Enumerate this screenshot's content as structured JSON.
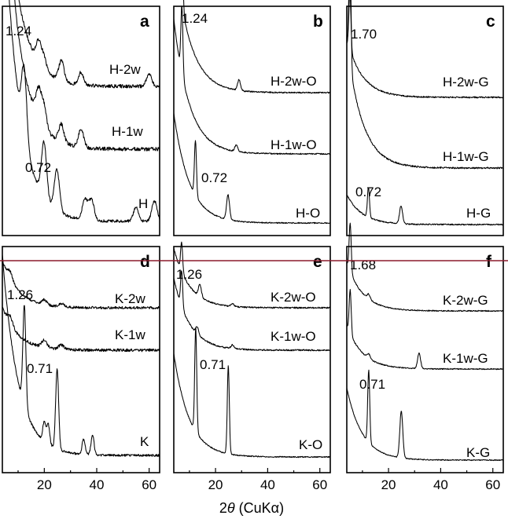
{
  "xlabel": {
    "prefix": "2",
    "theta": "θ",
    "unit": " (CuKα)"
  },
  "colors": {
    "trace": "#000000",
    "divider": "#8b1a2b",
    "background": "#ffffff"
  },
  "chart_data": [
    {
      "type": "line",
      "panel": "a",
      "xlim": [
        4,
        64
      ],
      "xticks": [],
      "series": [
        {
          "name": "H-2w",
          "peaks": [
            [
              7.1,
              1.0
            ],
            [
              17.8,
              0.5
            ],
            [
              19.8,
              0.3
            ],
            [
              26.5,
              0.5
            ],
            [
              34.0,
              0.3
            ],
            [
              60.0,
              0.3
            ]
          ]
        },
        {
          "name": "H-1w",
          "peaks": [
            [
              7.1,
              0.6
            ],
            [
              17.8,
              0.8
            ],
            [
              19.8,
              0.6
            ],
            [
              26.5,
              0.5
            ],
            [
              34.0,
              0.5
            ]
          ]
        },
        {
          "name": "H",
          "peaks": [
            [
              12.3,
              1.0
            ],
            [
              19.9,
              0.8
            ],
            [
              24.8,
              0.6
            ],
            [
              35.5,
              0.3
            ],
            [
              38.0,
              0.3
            ],
            [
              55.0,
              0.2
            ],
            [
              62.0,
              0.3
            ]
          ]
        }
      ],
      "annotations": [
        {
          "text": "1.24",
          "x": 7.1
        },
        {
          "text": "0.72",
          "x": 12.3
        }
      ]
    },
    {
      "type": "line",
      "panel": "b",
      "xlim": [
        4,
        64
      ],
      "xticks": [],
      "series": [
        {
          "name": "H-2w-O",
          "peaks": [
            [
              7.1,
              1.0
            ],
            [
              29.0,
              0.15
            ]
          ]
        },
        {
          "name": "H-1w-O",
          "peaks": [
            [
              7.1,
              1.0
            ],
            [
              28.0,
              0.1
            ]
          ]
        },
        {
          "name": "H-O",
          "peaks": [
            [
              12.3,
              1.0
            ],
            [
              24.8,
              0.45
            ]
          ]
        }
      ],
      "annotations": [
        {
          "text": "1.24",
          "x": 7.1
        },
        {
          "text": "0.72",
          "x": 12.3
        }
      ]
    },
    {
      "type": "line",
      "panel": "c",
      "xlim": [
        4,
        64
      ],
      "xticks": [],
      "series": [
        {
          "name": "H-2w-G",
          "peaks": [
            [
              5.2,
              1.0
            ]
          ]
        },
        {
          "name": "H-1w-G",
          "peaks": [
            [
              5.2,
              1.0
            ]
          ]
        },
        {
          "name": "H-G",
          "peaks": [
            [
              12.3,
              1.0
            ],
            [
              24.8,
              0.6
            ]
          ]
        }
      ],
      "annotations": [
        {
          "text": "1.70",
          "x": 5.2
        },
        {
          "text": "0.72",
          "x": 12.3
        }
      ]
    },
    {
      "type": "line",
      "panel": "d",
      "xlim": [
        4,
        64
      ],
      "xticks": [
        20,
        40,
        60
      ],
      "series": [
        {
          "name": "K-2w",
          "peaks": [
            [
              7.0,
              0.5
            ],
            [
              20.0,
              0.3
            ],
            [
              26.5,
              0.2
            ]
          ]
        },
        {
          "name": "K-1w",
          "peaks": [
            [
              7.0,
              0.6
            ],
            [
              20.0,
              0.5
            ],
            [
              26.5,
              0.3
            ]
          ]
        },
        {
          "name": "K",
          "peaks": [
            [
              12.4,
              1.0
            ],
            [
              20.0,
              0.2
            ],
            [
              21.5,
              0.2
            ],
            [
              24.9,
              0.8
            ],
            [
              35.0,
              0.15
            ],
            [
              38.4,
              0.2
            ]
          ]
        }
      ],
      "annotations": [
        {
          "text": "1.26",
          "x": 7.0
        },
        {
          "text": "0.71",
          "x": 12.4
        }
      ]
    },
    {
      "type": "line",
      "panel": "e",
      "xlim": [
        4,
        64
      ],
      "xticks": [
        20,
        40,
        60
      ],
      "series": [
        {
          "name": "K-2w-O",
          "peaks": [
            [
              7.0,
              1.0
            ],
            [
              14.0,
              0.4
            ],
            [
              26.5,
              0.1
            ]
          ]
        },
        {
          "name": "K-1w-O",
          "peaks": [
            [
              7.0,
              1.0
            ],
            [
              13.0,
              0.2
            ],
            [
              26.5,
              0.1
            ]
          ]
        },
        {
          "name": "K-O",
          "peaks": [
            [
              12.4,
              1.0
            ],
            [
              24.9,
              0.85
            ]
          ]
        }
      ],
      "annotations": [
        {
          "text": "1.26",
          "x": 7.0
        },
        {
          "text": "0.71",
          "x": 12.4
        }
      ]
    },
    {
      "type": "line",
      "panel": "f",
      "xlim": [
        4,
        64
      ],
      "xticks": [
        20,
        40,
        60
      ],
      "series": [
        {
          "name": "K-2w-G",
          "peaks": [
            [
              5.3,
              1.0
            ],
            [
              12.4,
              0.1
            ]
          ]
        },
        {
          "name": "K-1w-G",
          "peaks": [
            [
              5.3,
              1.0
            ],
            [
              12.4,
              0.1
            ],
            [
              31.7,
              0.35
            ]
          ]
        },
        {
          "name": "K-G",
          "peaks": [
            [
              12.4,
              1.0
            ],
            [
              24.9,
              0.65
            ]
          ]
        }
      ],
      "annotations": [
        {
          "text": "1.68",
          "x": 5.3
        },
        {
          "text": "0.71",
          "x": 12.4
        }
      ]
    }
  ]
}
